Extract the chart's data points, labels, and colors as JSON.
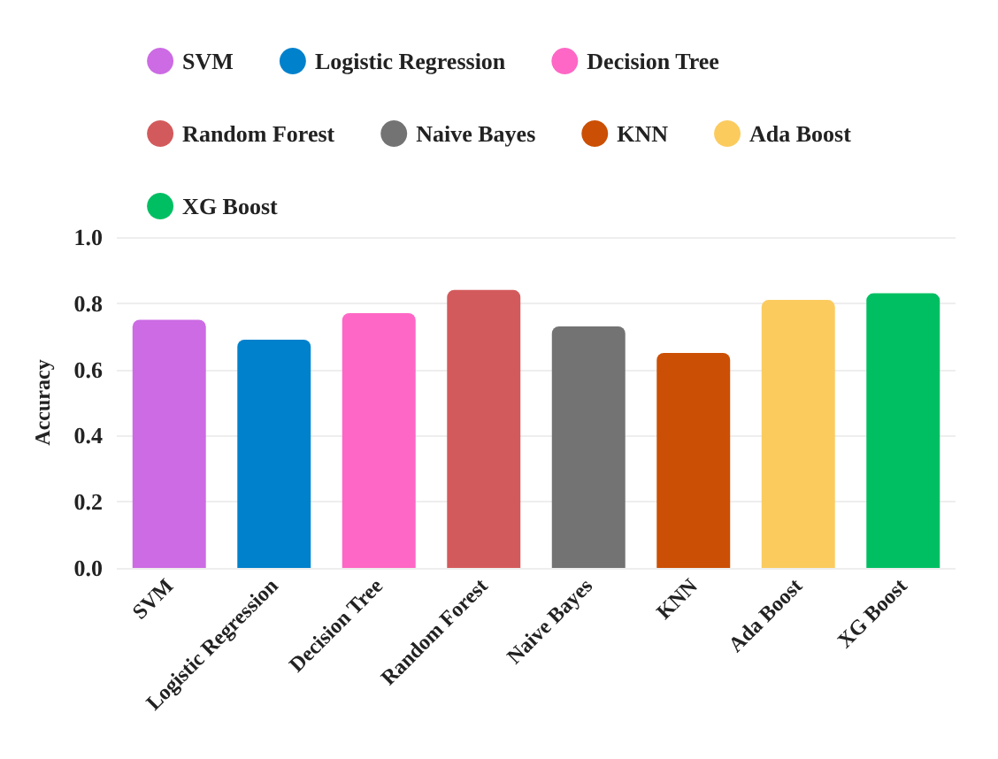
{
  "chart_data": {
    "type": "bar",
    "ylabel": "Accuracy",
    "categories": [
      "SVM",
      "Logistic Regression",
      "Decision Tree",
      "Random Forest",
      "Naive Bayes",
      "KNN",
      "Ada Boost",
      "XG Boost"
    ],
    "series": [
      {
        "name": "SVM",
        "color": "#cc6be4",
        "values": [
          0.75,
          null,
          null,
          null,
          null,
          null,
          null,
          null
        ]
      },
      {
        "name": "Logistic Regression",
        "color": "#0081cc",
        "values": [
          null,
          0.69,
          null,
          null,
          null,
          null,
          null,
          null
        ]
      },
      {
        "name": "Decision Tree",
        "color": "#fe67c5",
        "values": [
          null,
          null,
          0.77,
          null,
          null,
          null,
          null,
          null
        ]
      },
      {
        "name": "Random Forest",
        "color": "#d35a5c",
        "values": [
          null,
          null,
          null,
          0.84,
          null,
          null,
          null,
          null
        ]
      },
      {
        "name": "Naive Bayes",
        "color": "#737373",
        "values": [
          null,
          null,
          null,
          null,
          0.73,
          null,
          null,
          null
        ]
      },
      {
        "name": "KNN",
        "color": "#cb4f04",
        "values": [
          null,
          null,
          null,
          null,
          null,
          0.65,
          null,
          null
        ]
      },
      {
        "name": "Ada Boost",
        "color": "#fbcb5e",
        "values": [
          null,
          null,
          null,
          null,
          null,
          null,
          0.81,
          null
        ]
      },
      {
        "name": "XG Boost",
        "color": "#00bf63",
        "values": [
          null,
          null,
          null,
          null,
          null,
          null,
          null,
          0.83
        ]
      }
    ],
    "stacked": true,
    "ylim": [
      0,
      1
    ],
    "yticks": [
      "0.0",
      0.2,
      0.4,
      0.6,
      0.8,
      "1.0"
    ],
    "grid": "y",
    "legend": "top"
  }
}
